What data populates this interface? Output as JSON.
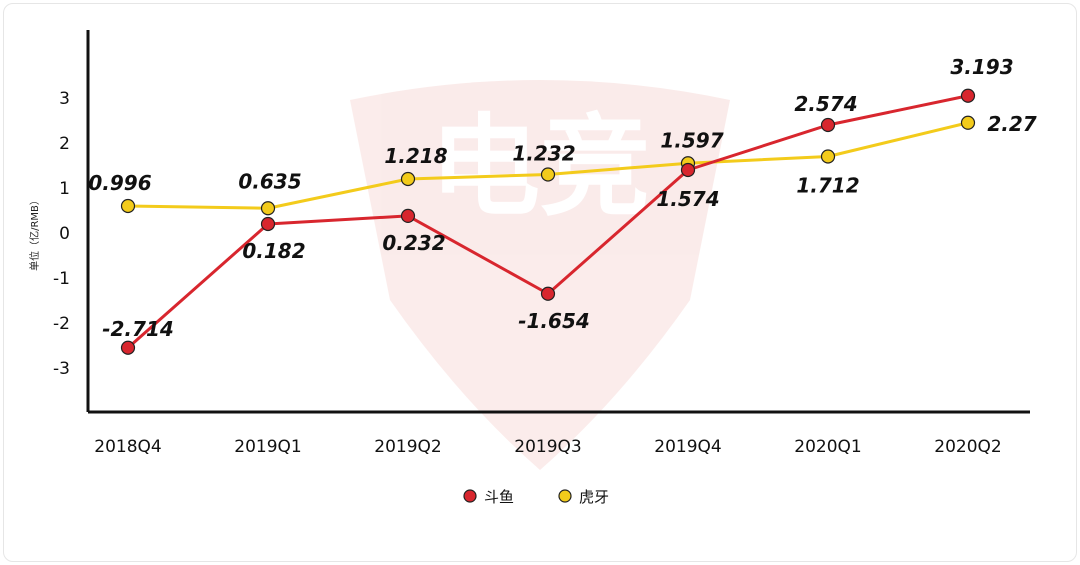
{
  "chart_data": {
    "type": "line",
    "categories": [
      "2018Q4",
      "2019Q1",
      "2019Q2",
      "2019Q3",
      "2019Q4",
      "2020Q1",
      "2020Q2"
    ],
    "series": [
      {
        "name": "斗鱼",
        "color": "#d8262e",
        "values": [
          -2.714,
          0.182,
          0.232,
          -1.654,
          1.574,
          2.574,
          3.193
        ],
        "labels": [
          "-2.714",
          "0.182",
          "0.232",
          "-1.654",
          "1.574",
          "2.574",
          "3.193"
        ]
      },
      {
        "name": "虎牙",
        "color": "#f3cb1b",
        "values": [
          0.996,
          0.635,
          1.218,
          1.232,
          1.597,
          1.712,
          2.27
        ],
        "labels": [
          "0.996",
          "0.635",
          "1.218",
          "1.232",
          "1.597",
          "1.712",
          "2.27"
        ]
      }
    ],
    "plotted_values": {
      "斗鱼": [
        -2.55,
        0.2,
        0.38,
        -1.35,
        1.4,
        2.4,
        3.05
      ],
      "虎牙": [
        0.6,
        0.55,
        1.2,
        1.3,
        1.55,
        1.7,
        2.45
      ]
    },
    "yticks": [
      "3",
      "2",
      "1",
      "0",
      "-1",
      "-2",
      "-3"
    ],
    "ylim": [
      -4,
      4
    ],
    "ylabel": "单位（亿/RMB）",
    "xlabel": "",
    "title": "",
    "grid": false,
    "legend_position": "bottom"
  },
  "watermark": {
    "text": "电竞",
    "color": "#d22d20"
  }
}
